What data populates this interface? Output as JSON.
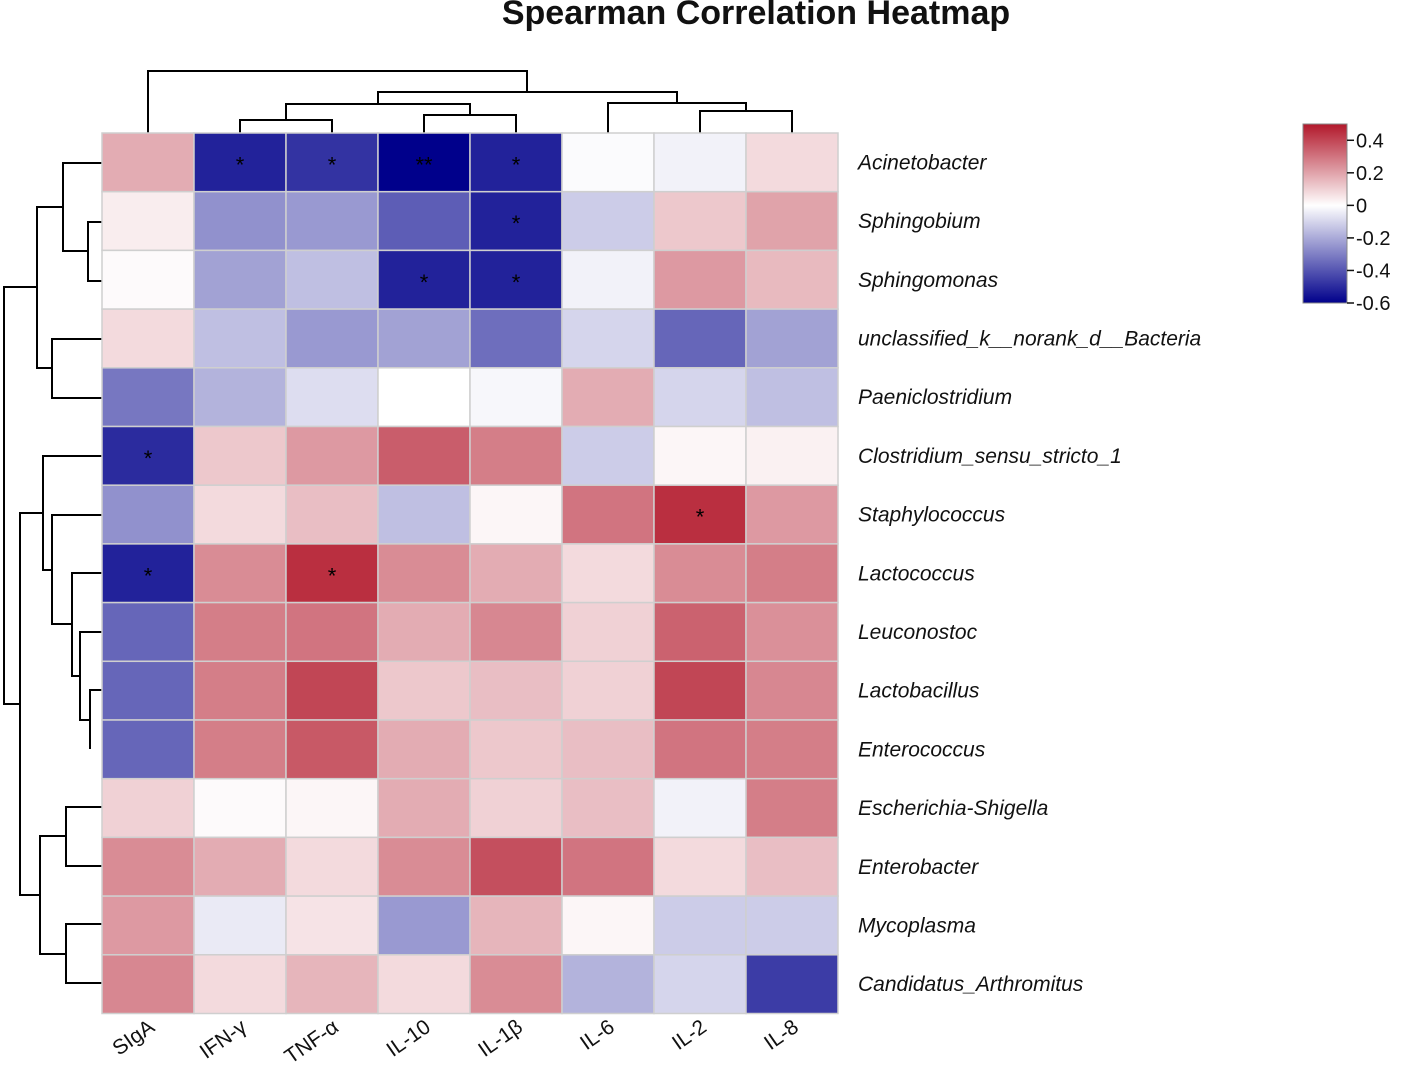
{
  "chart_data": {
    "type": "heatmap",
    "title": "Spearman Correlation Heatmap",
    "columns": [
      "SIgA",
      "IFN-γ",
      "TNF-α",
      "IL-10",
      "IL-1β",
      "IL-6",
      "IL-2",
      "IL-8"
    ],
    "rows": [
      "Acinetobacter",
      "Sphingobium",
      "Sphingomonas",
      "unclassified_k__norank_d__Bacteria",
      "Paeniclostridium",
      "Clostridium_sensu_stricto_1",
      "Staphylococcus",
      "Lactococcus",
      "Leuconostoc",
      "Lactobacillus",
      "Enterococcus",
      "Escherichia-Shigella",
      "Enterobacter",
      "Mycoplasma",
      "Candidatus_Arthromitus"
    ],
    "values": [
      [
        0.18,
        -0.52,
        -0.48,
        -0.6,
        -0.52,
        -0.01,
        -0.03,
        0.08
      ],
      [
        0.04,
        -0.26,
        -0.24,
        -0.38,
        -0.52,
        -0.12,
        0.12,
        0.2
      ],
      [
        0.01,
        -0.22,
        -0.15,
        -0.52,
        -0.52,
        -0.03,
        0.22,
        0.15
      ],
      [
        0.08,
        -0.15,
        -0.24,
        -0.22,
        -0.34,
        -0.1,
        -0.36,
        -0.22
      ],
      [
        -0.32,
        -0.18,
        -0.08,
        0.0,
        -0.02,
        0.18,
        -0.1,
        -0.15
      ],
      [
        -0.5,
        0.12,
        0.22,
        0.35,
        0.28,
        -0.12,
        0.02,
        0.03
      ],
      [
        -0.26,
        0.08,
        0.14,
        -0.15,
        0.02,
        0.3,
        0.45,
        0.22
      ],
      [
        -0.52,
        0.25,
        0.45,
        0.25,
        0.18,
        0.08,
        0.25,
        0.28
      ],
      [
        -0.36,
        0.28,
        0.3,
        0.18,
        0.26,
        0.1,
        0.34,
        0.24
      ],
      [
        -0.36,
        0.28,
        0.4,
        0.12,
        0.14,
        0.1,
        0.4,
        0.26
      ],
      [
        -0.36,
        0.28,
        0.36,
        0.18,
        0.12,
        0.14,
        0.3,
        0.28
      ],
      [
        0.1,
        0.01,
        0.02,
        0.18,
        0.1,
        0.14,
        -0.03,
        0.28
      ],
      [
        0.25,
        0.18,
        0.08,
        0.25,
        0.38,
        0.3,
        0.08,
        0.14
      ],
      [
        0.22,
        -0.05,
        0.06,
        -0.24,
        0.16,
        0.02,
        -0.12,
        -0.12
      ],
      [
        0.26,
        0.08,
        0.16,
        0.08,
        0.25,
        -0.18,
        -0.1,
        -0.46
      ]
    ],
    "significance": [
      [
        "",
        "*",
        "*",
        "**",
        "*",
        "",
        "",
        ""
      ],
      [
        "",
        "",
        "",
        "",
        "*",
        "",
        "",
        ""
      ],
      [
        "",
        "",
        "",
        "*",
        "*",
        "",
        "",
        ""
      ],
      [
        "",
        "",
        "",
        "",
        "",
        "",
        "",
        ""
      ],
      [
        "",
        "",
        "",
        "",
        "",
        "",
        "",
        ""
      ],
      [
        "*",
        "",
        "",
        "",
        "",
        "",
        "",
        ""
      ],
      [
        "",
        "",
        "",
        "",
        "",
        "",
        "*",
        ""
      ],
      [
        "*",
        "",
        "*",
        "",
        "",
        "",
        "",
        ""
      ],
      [
        "",
        "",
        "",
        "",
        "",
        "",
        "",
        ""
      ],
      [
        "",
        "",
        "",
        "",
        "",
        "",
        "",
        ""
      ],
      [
        "",
        "",
        "",
        "",
        "",
        "",
        "",
        ""
      ],
      [
        "",
        "",
        "",
        "",
        "",
        "",
        "",
        ""
      ],
      [
        "",
        "",
        "",
        "",
        "",
        "",
        "",
        ""
      ],
      [
        "",
        "",
        "",
        "",
        "",
        "",
        "",
        ""
      ],
      [
        "",
        "",
        "",
        "",
        "",
        "",
        "",
        ""
      ]
    ],
    "color_scale": {
      "min": -0.6,
      "mid": 0,
      "max": 0.5,
      "low_color": "#00008b",
      "mid_color": "#ffffff",
      "high_color": "#b2182b",
      "ticks": [
        0.4,
        0.2,
        0,
        -0.2,
        -0.4,
        -0.6
      ],
      "tick_labels": [
        "0.4",
        "0.2",
        "0",
        "-0.2",
        "-0.4",
        "-0.6"
      ]
    },
    "legend_position": "top-right",
    "row_dendrogram": true,
    "column_dendrogram": true
  }
}
